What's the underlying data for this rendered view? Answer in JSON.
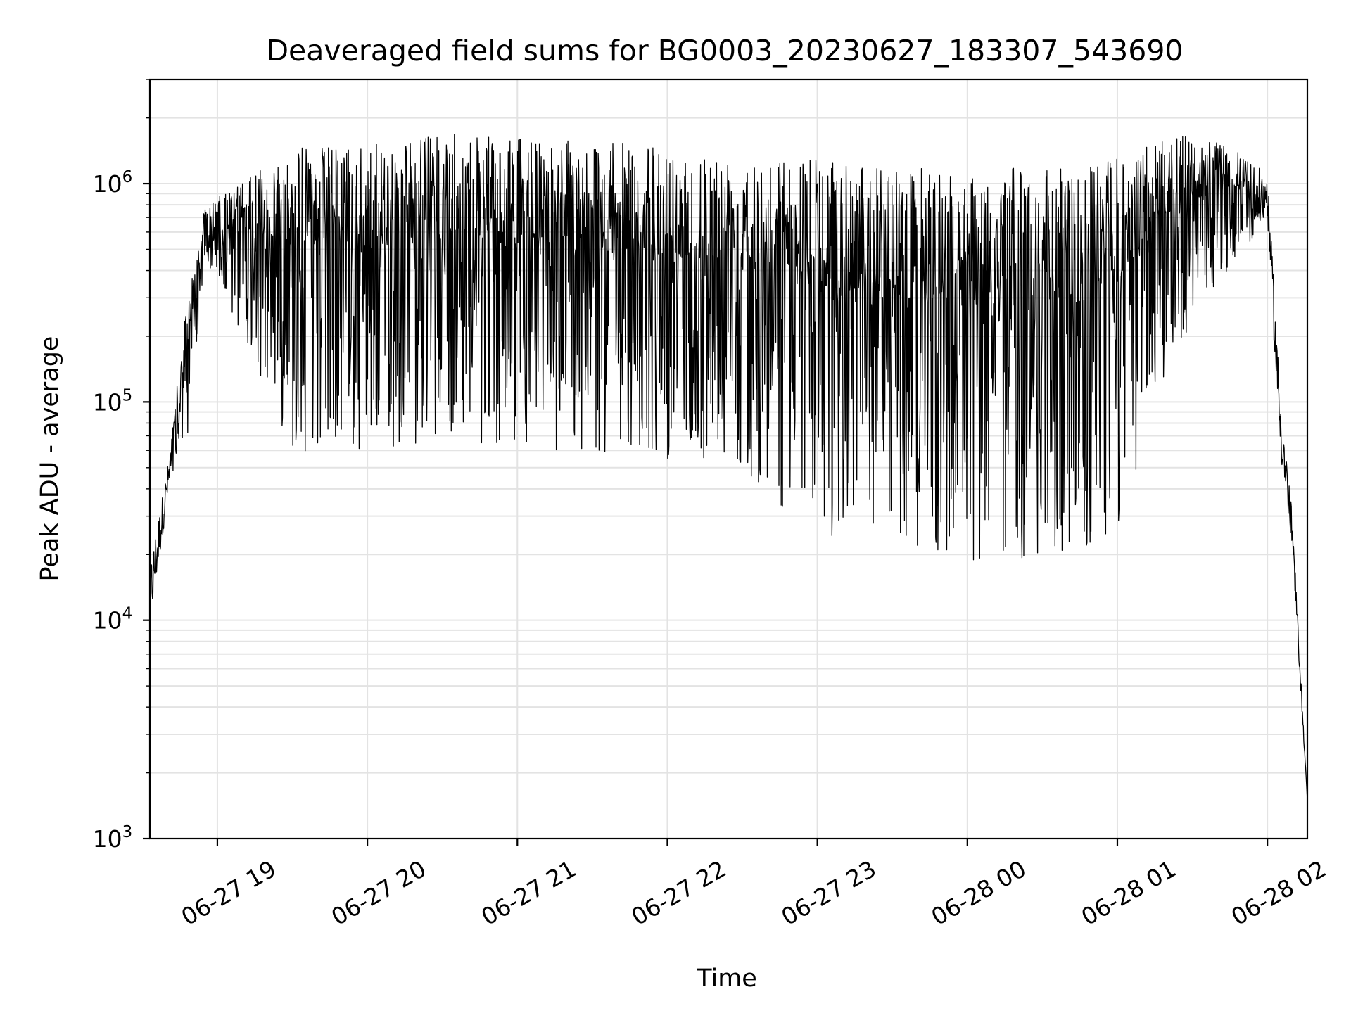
{
  "chart_data": {
    "type": "line",
    "title": "Deaveraged field sums for BG0003_20230627_183307_543690",
    "xlabel": "Time",
    "ylabel": "Peak ADU - average",
    "yscale": "log",
    "ylim": [
      1000,
      3000000
    ],
    "xlim": [
      "2023-06-27 18:33",
      "2023-06-28 02:16"
    ],
    "grid": true,
    "x_ticks": [
      {
        "label": "06-27 19",
        "time": "2023-06-27 19:00"
      },
      {
        "label": "06-27 20",
        "time": "2023-06-27 20:00"
      },
      {
        "label": "06-27 21",
        "time": "2023-06-27 21:00"
      },
      {
        "label": "06-27 22",
        "time": "2023-06-27 22:00"
      },
      {
        "label": "06-27 23",
        "time": "2023-06-27 23:00"
      },
      {
        "label": "06-28 00",
        "time": "2023-06-28 00:00"
      },
      {
        "label": "06-28 01",
        "time": "2023-06-28 01:00"
      },
      {
        "label": "06-28 02",
        "time": "2023-06-28 02:00"
      }
    ],
    "y_ticks": [
      {
        "base": "10",
        "exp": "3",
        "value": 1000
      },
      {
        "base": "10",
        "exp": "4",
        "value": 10000
      },
      {
        "base": "10",
        "exp": "5",
        "value": 100000
      },
      {
        "base": "10",
        "exp": "6",
        "value": 1000000
      }
    ],
    "envelope": {
      "description_points": [
        {
          "time": "2023-06-27 18:33",
          "upper": 18000,
          "lower": 9000
        },
        {
          "time": "2023-06-27 18:40",
          "upper": 50000,
          "lower": 35000
        },
        {
          "time": "2023-06-27 18:48",
          "upper": 300000,
          "lower": 60000
        },
        {
          "time": "2023-06-27 18:55",
          "upper": 800000,
          "lower": 450000
        },
        {
          "time": "2023-06-27 19:15",
          "upper": 1100000,
          "lower": 150000
        },
        {
          "time": "2023-06-27 19:30",
          "upper": 1500000,
          "lower": 60000
        },
        {
          "time": "2023-06-27 20:00",
          "upper": 1500000,
          "lower": 55000
        },
        {
          "time": "2023-06-27 20:30",
          "upper": 1700000,
          "lower": 70000
        },
        {
          "time": "2023-06-27 21:00",
          "upper": 1600000,
          "lower": 60000
        },
        {
          "time": "2023-06-27 21:30",
          "upper": 1600000,
          "lower": 55000
        },
        {
          "time": "2023-06-27 22:00",
          "upper": 1450000,
          "lower": 55000
        },
        {
          "time": "2023-06-27 22:30",
          "upper": 1400000,
          "lower": 50000
        },
        {
          "time": "2023-06-27 23:00",
          "upper": 1300000,
          "lower": 23000
        },
        {
          "time": "2023-06-27 23:30",
          "upper": 1200000,
          "lower": 22000
        },
        {
          "time": "2023-06-28 00:00",
          "upper": 1150000,
          "lower": 18000
        },
        {
          "time": "2023-06-28 00:30",
          "upper": 1200000,
          "lower": 19000
        },
        {
          "time": "2023-06-28 01:00",
          "upper": 1300000,
          "lower": 22000
        },
        {
          "time": "2023-06-28 01:20",
          "upper": 1700000,
          "lower": 150000
        },
        {
          "time": "2023-06-28 01:45",
          "upper": 1500000,
          "lower": 400000
        },
        {
          "time": "2023-06-28 02:00",
          "upper": 1100000,
          "lower": 700000
        },
        {
          "time": "2023-06-28 02:05",
          "upper": 120000,
          "lower": 60000
        },
        {
          "time": "2023-06-28 02:10",
          "upper": 30000,
          "lower": 20000
        },
        {
          "time": "2023-06-28 02:16",
          "upper": 1500,
          "lower": 1500
        }
      ]
    }
  }
}
